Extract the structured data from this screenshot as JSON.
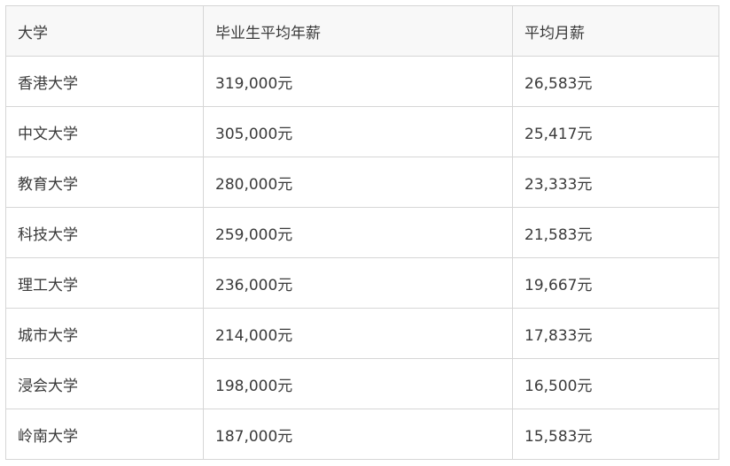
{
  "headers": [
    "大学",
    "毕业生平均年薪",
    "平均月薪"
  ],
  "rows": [
    [
      "香港大学",
      "319,000元",
      "26,583元"
    ],
    [
      "中文大学",
      "305,000元",
      "25,417元"
    ],
    [
      "教育大学",
      "280,000元",
      "23,333元"
    ],
    [
      "科技大学",
      "259,000元",
      "21,583元"
    ],
    [
      "理工大学",
      "236,000元",
      "19,667元"
    ],
    [
      "城市大学",
      "214,000元",
      "17,833元"
    ],
    [
      "浸会大学",
      "198,000元",
      "16,500元"
    ],
    [
      "岭南大学",
      "187,000元",
      "15,583元"
    ]
  ]
}
